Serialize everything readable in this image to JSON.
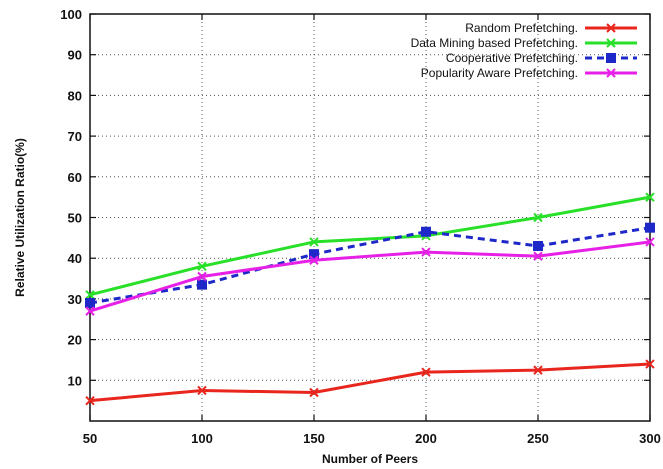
{
  "chart_data": {
    "type": "line",
    "xlabel": "Number of Peers",
    "ylabel": "Relative Utilization Ratio(%)",
    "x": [
      50,
      100,
      150,
      200,
      250,
      300
    ],
    "xlim": [
      50,
      300
    ],
    "ylim": [
      0,
      100
    ],
    "x_ticks": [
      "50",
      "100",
      "150",
      "200",
      "250",
      "300"
    ],
    "y_ticks": [
      "10",
      "20",
      "30",
      "40",
      "50",
      "60",
      "70",
      "80",
      "90",
      "100"
    ],
    "grid": true,
    "legend_position": "top-right",
    "series": [
      {
        "name": "Random Prefetching.",
        "values": [
          5,
          7.5,
          7,
          12,
          12.5,
          14
        ],
        "color": "#e8261e",
        "marker": "x",
        "dash": ""
      },
      {
        "name": "Data Mining based Prefetching.",
        "values": [
          31,
          38,
          44,
          45.5,
          50,
          55
        ],
        "color": "#28e028",
        "marker": "x",
        "dash": ""
      },
      {
        "name": "Cooperative Prefetching.",
        "values": [
          29,
          33.5,
          41,
          46.5,
          43,
          47.5
        ],
        "color": "#1e28c8",
        "marker": "square",
        "dash": "7,5"
      },
      {
        "name": "Popularity Aware Prefetching.",
        "values": [
          27,
          35.5,
          39.5,
          41.5,
          40.5,
          44
        ],
        "color": "#e620e6",
        "marker": "x",
        "dash": ""
      }
    ]
  }
}
